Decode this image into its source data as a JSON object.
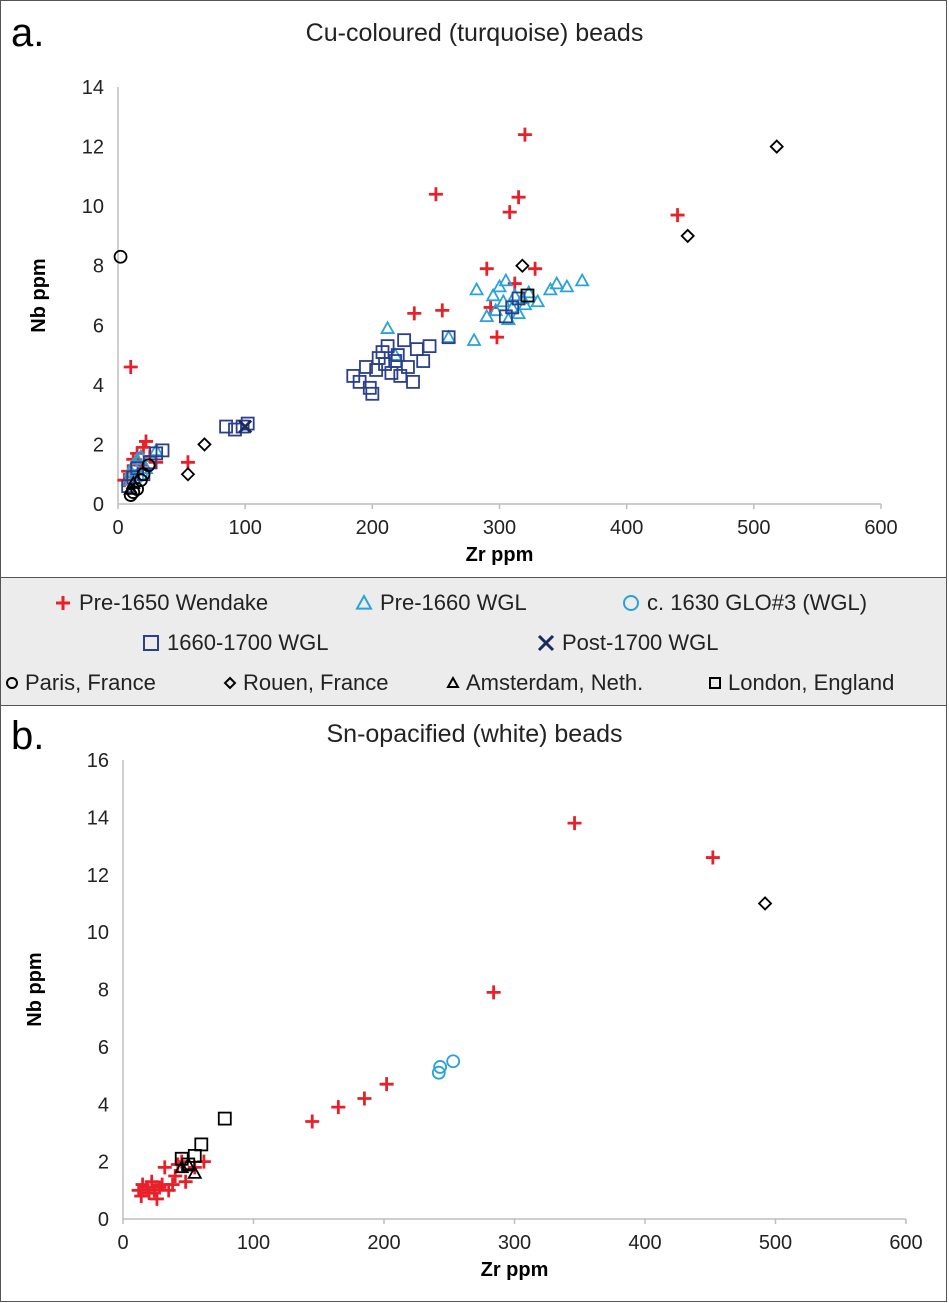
{
  "colors": {
    "pre1650": "#e8202a",
    "pre1660": "#29a3d6",
    "glo3": "#29a3d6",
    "wgl1660": "#2b3f8c",
    "post1700": "#1a2a5c",
    "european": "#000000"
  },
  "legend": [
    {
      "name": "Pre-1650 Wendake",
      "marker": "plus",
      "color": "#e8202a"
    },
    {
      "name": "Pre-1660 WGL",
      "marker": "triangle",
      "color": "#29a3d6"
    },
    {
      "name": "c. 1630 GLO#3 (WGL)",
      "marker": "circle",
      "color": "#29a3d6"
    },
    {
      "name": "1660-1700 WGL",
      "marker": "square",
      "color": "#2b3f8c"
    },
    {
      "name": "Post-1700 WGL",
      "marker": "x",
      "color": "#1a2a5c"
    },
    {
      "name": "Paris, France",
      "marker": "circle",
      "color": "#000000"
    },
    {
      "name": "Rouen, France",
      "marker": "diamond",
      "color": "#000000"
    },
    {
      "name": "Amsterdam, Neth.",
      "marker": "triangle",
      "color": "#000000"
    },
    {
      "name": "London, England",
      "marker": "square",
      "color": "#000000"
    }
  ],
  "chart_data": [
    {
      "type": "scatter",
      "panel_label": "a.",
      "title": "Cu-coloured (turquoise) beads",
      "xlabel": "Zr ppm",
      "ylabel": "Nb ppm",
      "xlim": [
        0,
        600
      ],
      "ylim": [
        0,
        14
      ],
      "xticks": [
        "0",
        "100",
        "200",
        "300",
        "400",
        "500",
        "600"
      ],
      "yticks": [
        "0",
        "2",
        "4",
        "6",
        "8",
        "10",
        "12",
        "14"
      ],
      "grid": false,
      "series": [
        {
          "name": "Pre-1650 Wendake",
          "marker": "plus",
          "color": "#e8202a",
          "points": [
            [
              10,
              4.6
            ],
            [
              5,
              0.8
            ],
            [
              8,
              1.1
            ],
            [
              12,
              1.5
            ],
            [
              15,
              1.7
            ],
            [
              20,
              1.9
            ],
            [
              22,
              2.1
            ],
            [
              18,
              1.3
            ],
            [
              25,
              1.6
            ],
            [
              30,
              1.4
            ],
            [
              55,
              1.4
            ],
            [
              233,
              6.4
            ],
            [
              250,
              10.4
            ],
            [
              255,
              6.5
            ],
            [
              290,
              7.9
            ],
            [
              293,
              6.6
            ],
            [
              298,
              5.6
            ],
            [
              308,
              9.8
            ],
            [
              315,
              10.3
            ],
            [
              312,
              7.4
            ],
            [
              320,
              12.4
            ],
            [
              328,
              7.9
            ],
            [
              440,
              9.7
            ]
          ]
        },
        {
          "name": "Pre-1660 WGL",
          "marker": "triangle",
          "color": "#29a3d6",
          "points": [
            [
              8,
              0.8
            ],
            [
              10,
              1.1
            ],
            [
              12,
              1.3
            ],
            [
              15,
              1.5
            ],
            [
              18,
              1.6
            ],
            [
              22,
              1.2
            ],
            [
              30,
              1.8
            ],
            [
              212,
              5.9
            ],
            [
              218,
              5.0
            ],
            [
              260,
              5.6
            ],
            [
              280,
              5.5
            ],
            [
              282,
              7.2
            ],
            [
              290,
              6.3
            ],
            [
              295,
              7.0
            ],
            [
              297,
              6.5
            ],
            [
              300,
              7.3
            ],
            [
              303,
              6.8
            ],
            [
              305,
              7.5
            ],
            [
              307,
              6.2
            ],
            [
              310,
              6.6
            ],
            [
              312,
              7.0
            ],
            [
              315,
              6.4
            ],
            [
              318,
              6.9
            ],
            [
              320,
              6.7
            ],
            [
              323,
              7.1
            ],
            [
              330,
              6.8
            ],
            [
              340,
              7.2
            ],
            [
              345,
              7.4
            ],
            [
              353,
              7.3
            ],
            [
              365,
              7.5
            ]
          ]
        },
        {
          "name": "c. 1630 GLO#3 (WGL)",
          "marker": "circle",
          "color": "#29a3d6",
          "points": [
            [
              15,
              0.9
            ],
            [
              18,
              1.0
            ]
          ]
        },
        {
          "name": "1660-1700 WGL",
          "marker": "square",
          "color": "#2b3f8c",
          "points": [
            [
              8,
              0.6
            ],
            [
              12,
              0.9
            ],
            [
              15,
              1.2
            ],
            [
              20,
              1.0
            ],
            [
              25,
              1.4
            ],
            [
              30,
              1.7
            ],
            [
              35,
              1.8
            ],
            [
              85,
              2.6
            ],
            [
              92,
              2.5
            ],
            [
              98,
              2.6
            ],
            [
              102,
              2.7
            ],
            [
              185,
              4.3
            ],
            [
              190,
              4.1
            ],
            [
              195,
              4.6
            ],
            [
              198,
              3.9
            ],
            [
              200,
              3.7
            ],
            [
              203,
              4.5
            ],
            [
              205,
              4.9
            ],
            [
              208,
              5.1
            ],
            [
              210,
              4.7
            ],
            [
              212,
              5.3
            ],
            [
              215,
              4.4
            ],
            [
              218,
              4.8
            ],
            [
              220,
              5.0
            ],
            [
              222,
              4.3
            ],
            [
              225,
              5.5
            ],
            [
              228,
              4.6
            ],
            [
              232,
              4.1
            ],
            [
              235,
              5.2
            ],
            [
              240,
              4.8
            ],
            [
              245,
              5.3
            ],
            [
              260,
              5.6
            ],
            [
              305,
              6.3
            ],
            [
              310,
              6.6
            ],
            [
              315,
              6.9
            ]
          ]
        },
        {
          "name": "Post-1700 WGL",
          "marker": "x",
          "color": "#1a2a5c",
          "points": [
            [
              100,
              2.6
            ]
          ]
        },
        {
          "name": "Paris, France",
          "marker": "circle",
          "color": "#000000",
          "points": [
            [
              2,
              8.3
            ],
            [
              12,
              0.4
            ],
            [
              15,
              0.5
            ],
            [
              18,
              0.8
            ],
            [
              20,
              1.0
            ],
            [
              24,
              1.3
            ],
            [
              10,
              0.3
            ]
          ]
        },
        {
          "name": "Rouen, France",
          "marker": "diamond",
          "color": "#000000",
          "points": [
            [
              55,
              1.0
            ],
            [
              68,
              2.0
            ],
            [
              318,
              8.0
            ],
            [
              448,
              9.0
            ],
            [
              518,
              12.0
            ]
          ]
        },
        {
          "name": "Amsterdam, Neth.",
          "marker": "triangle",
          "color": "#000000",
          "points": [
            [
              10,
              0.5
            ],
            [
              12,
              0.7
            ]
          ]
        },
        {
          "name": "London, England",
          "marker": "square",
          "color": "#000000",
          "points": [
            [
              322,
              7.0
            ]
          ]
        }
      ]
    },
    {
      "type": "scatter",
      "panel_label": "b.",
      "title": "Sn-opacified (white) beads",
      "xlabel": "Zr ppm",
      "ylabel": "Nb ppm",
      "xlim": [
        0,
        600
      ],
      "ylim": [
        0,
        16
      ],
      "xticks": [
        "0",
        "100",
        "200",
        "300",
        "400",
        "500",
        "600"
      ],
      "yticks": [
        "0",
        "2",
        "4",
        "6",
        "8",
        "10",
        "12",
        "14",
        "16"
      ],
      "grid": false,
      "series": [
        {
          "name": "Pre-1650 Wendake",
          "marker": "plus",
          "color": "#e8202a",
          "points": [
            [
              12,
              1.0
            ],
            [
              14,
              0.8
            ],
            [
              15,
              1.2
            ],
            [
              18,
              1.1
            ],
            [
              20,
              0.9
            ],
            [
              22,
              1.3
            ],
            [
              24,
              1.0
            ],
            [
              26,
              0.7
            ],
            [
              28,
              1.1
            ],
            [
              30,
              1.2
            ],
            [
              32,
              1.8
            ],
            [
              35,
              1.0
            ],
            [
              38,
              1.2
            ],
            [
              40,
              1.5
            ],
            [
              42,
              1.9
            ],
            [
              45,
              2.0
            ],
            [
              48,
              1.3
            ],
            [
              55,
              1.8
            ],
            [
              62,
              2.0
            ],
            [
              145,
              3.4
            ],
            [
              165,
              3.9
            ],
            [
              185,
              4.2
            ],
            [
              202,
              4.7
            ],
            [
              284,
              7.9
            ],
            [
              346,
              13.8
            ],
            [
              452,
              12.6
            ]
          ]
        },
        {
          "name": "c. 1630 GLO#3 (WGL)",
          "marker": "circle",
          "color": "#29a3d6",
          "points": [
            [
              242,
              5.1
            ],
            [
              243,
              5.3
            ],
            [
              253,
              5.5
            ]
          ]
        },
        {
          "name": "Rouen, France",
          "marker": "diamond",
          "color": "#000000",
          "points": [
            [
              492,
              11.0
            ]
          ]
        },
        {
          "name": "Amsterdam, Neth.",
          "marker": "triangle",
          "color": "#000000",
          "points": [
            [
              45,
              1.8
            ],
            [
              50,
              1.9
            ],
            [
              55,
              1.6
            ]
          ]
        },
        {
          "name": "London, England",
          "marker": "square",
          "color": "#000000",
          "points": [
            [
              45,
              2.1
            ],
            [
              50,
              1.9
            ],
            [
              55,
              2.2
            ],
            [
              60,
              2.6
            ],
            [
              78,
              3.5
            ]
          ]
        }
      ]
    }
  ]
}
